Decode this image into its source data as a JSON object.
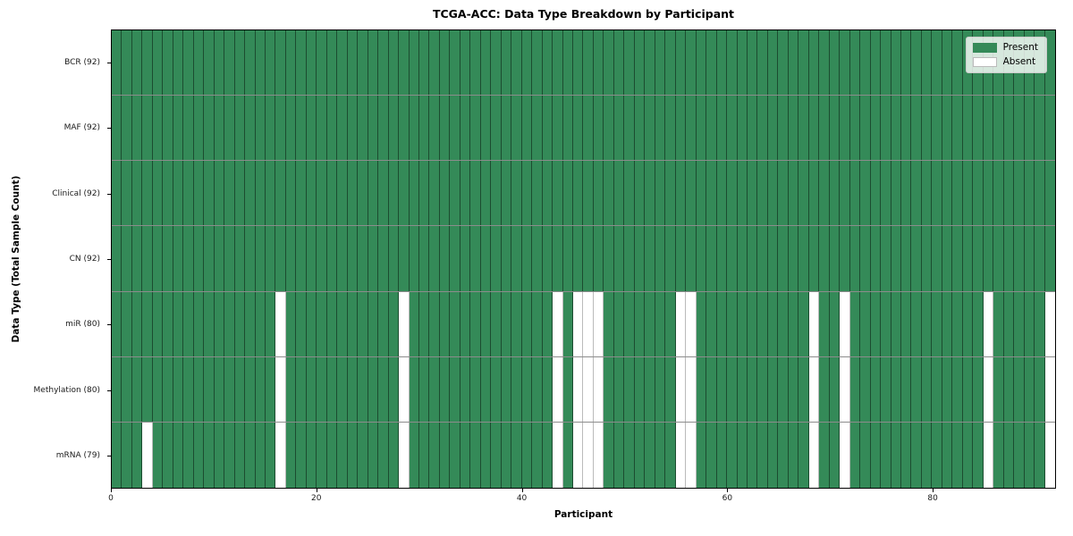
{
  "chart_data": {
    "type": "heatmap",
    "title": "TCGA-ACC: Data Type Breakdown by Participant",
    "xlabel": "Participant",
    "ylabel": "Data Type (Total Sample Count)",
    "n_participants": 92,
    "x_ticks": [
      0,
      20,
      40,
      60,
      80
    ],
    "xlim": [
      0,
      92
    ],
    "grid": false,
    "legend_position": "upper right",
    "colors": {
      "present": "#348a58",
      "absent": "#ffffff",
      "cell_edge": "rgba(0,0,0,0.45)"
    },
    "legend": [
      {
        "label": "Present",
        "color": "#348a58"
      },
      {
        "label": "Absent",
        "color": "#ffffff"
      }
    ],
    "rows": [
      {
        "label": "BCR (92)",
        "data_type": "BCR",
        "present_count": 92,
        "absent_participants": []
      },
      {
        "label": "MAF (92)",
        "data_type": "MAF",
        "present_count": 92,
        "absent_participants": []
      },
      {
        "label": "Clinical (92)",
        "data_type": "Clinical",
        "present_count": 92,
        "absent_participants": []
      },
      {
        "label": "CN (92)",
        "data_type": "CN",
        "present_count": 92,
        "absent_participants": []
      },
      {
        "label": "miR (80)",
        "data_type": "miR",
        "present_count": 80,
        "absent_participants": [
          16,
          28,
          43,
          45,
          46,
          47,
          55,
          56,
          68,
          71,
          85,
          91
        ]
      },
      {
        "label": "Methylation (80)",
        "data_type": "Methylation",
        "present_count": 80,
        "absent_participants": [
          16,
          28,
          43,
          45,
          46,
          47,
          55,
          56,
          68,
          71,
          85,
          91
        ]
      },
      {
        "label": "mRNA (79)",
        "data_type": "mRNA",
        "present_count": 79,
        "absent_participants": [
          3,
          16,
          28,
          43,
          45,
          46,
          47,
          55,
          56,
          68,
          71,
          85,
          91
        ]
      }
    ]
  }
}
